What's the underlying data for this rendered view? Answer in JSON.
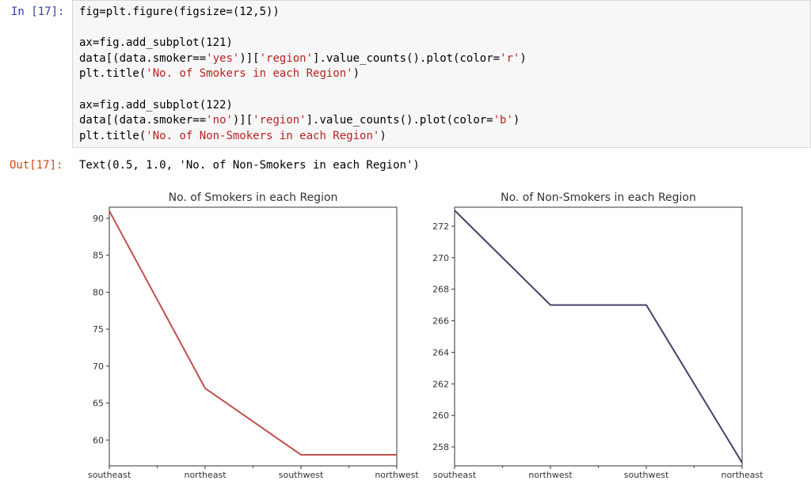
{
  "cell": {
    "in_prompt": "In [17]:",
    "out_prompt": "Out[17]:",
    "code_lines": [
      "fig=plt.figure(figsize=(12,5))",
      "",
      "ax=fig.add_subplot(121)",
      "data[(data.smoker=='yes')]['region'].value_counts().plot(color='r')",
      "plt.title('No. of Smokers in each Region')",
      "",
      "ax=fig.add_subplot(122)",
      "data[(data.smoker=='no')]['region'].value_counts().plot(color='b')",
      "plt.title('No. of Non-Smokers in each Region')"
    ],
    "output_text": "Text(0.5, 1.0, 'No. of Non-Smokers in each Region')"
  },
  "chart_data": [
    {
      "type": "line",
      "title": "No. of Smokers in each Region",
      "categories": [
        "southeast",
        "northeast",
        "southwest",
        "northwest"
      ],
      "values": [
        91,
        67,
        58,
        58
      ],
      "color": "#c0504d",
      "ylim": [
        56.5,
        91.5
      ],
      "yticks": [
        60,
        65,
        70,
        75,
        80,
        85,
        90
      ],
      "xlabel": "",
      "ylabel": "",
      "grid": false
    },
    {
      "type": "line",
      "title": "No. of Non-Smokers in each Region",
      "categories": [
        "southeast",
        "northwest",
        "southwest",
        "northeast"
      ],
      "values": [
        273,
        267,
        267,
        257
      ],
      "color": "#4a3f6b",
      "ylim": [
        256.8,
        273.2
      ],
      "yticks": [
        258,
        260,
        262,
        264,
        266,
        268,
        270,
        272
      ],
      "xlabel": "",
      "ylabel": "",
      "grid": false
    }
  ]
}
